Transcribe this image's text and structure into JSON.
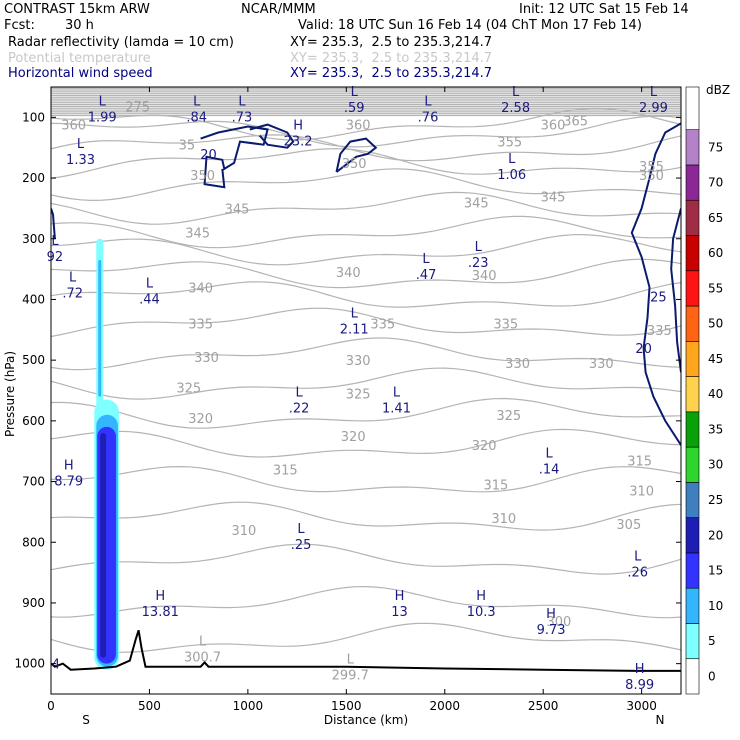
{
  "header": {
    "title": "CONTRAST 15km ARW",
    "center": "NCAR/MMM",
    "init": "Init: 12 UTC Sat 15 Feb 14",
    "fcst_label": "Fcst:",
    "fcst_value": "30 h",
    "valid": "Valid: 18 UTC Sun 16 Feb 14 (04 ChT Mon 17 Feb 14)",
    "fields": [
      {
        "name": "Radar reflectivity (lamda = 10 cm)",
        "xy": "XY= 235.3,  2.5 to 235.3,214.7",
        "color": "#000000"
      },
      {
        "name": "Potential temperature",
        "xy": "XY= 235.3,  2.5 to 235.3,214.7",
        "color": "#c8c8c8"
      },
      {
        "name": "Horizontal wind speed",
        "xy": "XY= 235.3,  2.5 to 235.3,214.7",
        "color": "#000080"
      }
    ]
  },
  "chart_data": {
    "type": "cross-section",
    "xlabel": "Distance (km)",
    "ylabel": "Pressure (hPa)",
    "xlim": [
      0,
      3200
    ],
    "ylim": [
      1050,
      50
    ],
    "x_ticks": [
      0,
      500,
      1000,
      1500,
      2000,
      2500,
      3000
    ],
    "y_ticks": [
      100,
      200,
      300,
      400,
      500,
      600,
      700,
      800,
      900,
      1000
    ],
    "x_end_labels": {
      "left": "S",
      "right": "N"
    },
    "colorbar": {
      "unit": "dBZ",
      "levels": [
        "0",
        "5",
        "10",
        "15",
        "20",
        "25",
        "30",
        "35",
        "40",
        "45",
        "50",
        "55",
        "60",
        "65",
        "70",
        "75"
      ],
      "colors": [
        "#ffffff",
        "#7fffff",
        "#33b5ff",
        "#3333ff",
        "#1e1eb4",
        "#3f7fbf",
        "#2fd42f",
        "#0aa00a",
        "#ffd24d",
        "#ffa51e",
        "#ff6414",
        "#ff1414",
        "#c80000",
        "#a02d46",
        "#8c2896",
        "#b482c8"
      ]
    },
    "theta_labels": [
      {
        "text": "275",
        "x": 440,
        "p": 82
      },
      {
        "text": "360",
        "x": 115,
        "p": 112
      },
      {
        "text": "360",
        "x": 1560,
        "p": 112
      },
      {
        "text": "365",
        "x": 2665,
        "p": 105
      },
      {
        "text": "360",
        "x": 2550,
        "p": 112
      },
      {
        "text": "35",
        "x": 690,
        "p": 145
      },
      {
        "text": "355",
        "x": 2330,
        "p": 140
      },
      {
        "text": "350",
        "x": 770,
        "p": 195
      },
      {
        "text": "350",
        "x": 1540,
        "p": 175
      },
      {
        "text": "345",
        "x": 945,
        "p": 250
      },
      {
        "text": "345",
        "x": 2160,
        "p": 240
      },
      {
        "text": "345",
        "x": 2550,
        "p": 230
      },
      {
        "text": "345",
        "x": 745,
        "p": 290
      },
      {
        "text": "340",
        "x": 1510,
        "p": 355
      },
      {
        "text": "340",
        "x": 760,
        "p": 380
      },
      {
        "text": "340",
        "x": 2200,
        "p": 360
      },
      {
        "text": "335",
        "x": 760,
        "p": 440
      },
      {
        "text": "335",
        "x": 1685,
        "p": 440
      },
      {
        "text": "335",
        "x": 2310,
        "p": 440
      },
      {
        "text": "330",
        "x": 790,
        "p": 495
      },
      {
        "text": "330",
        "x": 1560,
        "p": 500
      },
      {
        "text": "330",
        "x": 2370,
        "p": 505
      },
      {
        "text": "330",
        "x": 2795,
        "p": 505
      },
      {
        "text": "325",
        "x": 700,
        "p": 545
      },
      {
        "text": "325",
        "x": 1560,
        "p": 555
      },
      {
        "text": "325",
        "x": 2325,
        "p": 590
      },
      {
        "text": "320",
        "x": 760,
        "p": 595
      },
      {
        "text": "320",
        "x": 1535,
        "p": 625
      },
      {
        "text": "320",
        "x": 2200,
        "p": 640
      },
      {
        "text": "315",
        "x": 1190,
        "p": 680
      },
      {
        "text": "315",
        "x": 2260,
        "p": 705
      },
      {
        "text": "315",
        "x": 2990,
        "p": 665
      },
      {
        "text": "310",
        "x": 980,
        "p": 780
      },
      {
        "text": "310",
        "x": 2300,
        "p": 760
      },
      {
        "text": "310",
        "x": 3000,
        "p": 715
      },
      {
        "text": "305",
        "x": 2935,
        "p": 770
      },
      {
        "text": "300",
        "x": 2580,
        "p": 930
      },
      {
        "text": "355",
        "x": 3050,
        "p": 180
      },
      {
        "text": "350",
        "x": 3050,
        "p": 195
      },
      {
        "text": "335",
        "x": 3090,
        "p": 450
      }
    ],
    "wind_extrema": [
      {
        "type": "L",
        "value": "1.99",
        "x": 260,
        "p": 90
      },
      {
        "type": "L",
        "value": ".84",
        "x": 740,
        "p": 90
      },
      {
        "type": "L",
        "value": ".73",
        "x": 970,
        "p": 90
      },
      {
        "type": "L",
        "value": ".59",
        "x": 1540,
        "p": 75
      },
      {
        "type": "L",
        "value": ".76",
        "x": 1915,
        "p": 90
      },
      {
        "type": "L",
        "value": "2.58",
        "x": 2360,
        "p": 75
      },
      {
        "type": "L",
        "value": "2.99",
        "x": 3060,
        "p": 75
      },
      {
        "type": "L",
        "value": "1.33",
        "x": 150,
        "p": 160
      },
      {
        "type": "H",
        "value": "23.2",
        "x": 1255,
        "p": 130
      },
      {
        "type": "L",
        "value": "1.06",
        "x": 2340,
        "p": 185
      },
      {
        "type": "L",
        "value": "92",
        "x": 20,
        "p": 320
      },
      {
        "type": "L",
        "value": ".23",
        "x": 2170,
        "p": 330
      },
      {
        "type": "L",
        "value": ".47",
        "x": 1905,
        "p": 350
      },
      {
        "type": "L",
        "value": ".72",
        "x": 110,
        "p": 380
      },
      {
        "type": "L",
        "value": ".44",
        "x": 500,
        "p": 390
      },
      {
        "type": "L",
        "value": "2.11",
        "x": 1540,
        "p": 440
      },
      {
        "type": "L",
        "value": ".22",
        "x": 1260,
        "p": 570
      },
      {
        "type": "L",
        "value": "1.41",
        "x": 1755,
        "p": 570
      },
      {
        "type": "L",
        "value": ".14",
        "x": 2530,
        "p": 670
      },
      {
        "type": "H",
        "value": "8.79",
        "x": 90,
        "p": 690
      },
      {
        "type": "L",
        "value": ".25",
        "x": 1270,
        "p": 795
      },
      {
        "type": "L",
        "value": ".26",
        "x": 2980,
        "p": 840
      },
      {
        "type": "H",
        "value": "13.81",
        "x": 555,
        "p": 905
      },
      {
        "type": "H",
        "value": "13",
        "x": 1770,
        "p": 905
      },
      {
        "type": "H",
        "value": "10.3",
        "x": 2185,
        "p": 905
      },
      {
        "type": "H",
        "value": "9.73",
        "x": 2540,
        "p": 935
      },
      {
        "type": "H",
        "value": "8.99",
        "x": 2990,
        "p": 1025
      }
    ],
    "theta_extrema": [
      {
        "type": "L",
        "value": "300.7",
        "x": 770,
        "p": 980
      },
      {
        "type": "L",
        "value": "299.7",
        "x": 1520,
        "p": 1010
      }
    ],
    "wind_contour_labels": [
      {
        "text": "20",
        "x": 800,
        "p": 160
      },
      {
        "text": "25",
        "x": 3085,
        "p": 395
      },
      {
        "text": "20",
        "x": 3010,
        "p": 480
      }
    ],
    "misc_labels": [
      {
        "text": "4",
        "x": 25,
        "p": 1000
      }
    ],
    "reflectivity_columns": [
      {
        "x": [
          230,
          265
        ],
        "p": [
          300,
          990
        ],
        "dbz": 5
      },
      {
        "x": [
          240,
          255
        ],
        "p": [
          335,
          560
        ],
        "dbz": 10
      },
      {
        "x": [
          220,
          345
        ],
        "p": [
          565,
          1010
        ],
        "dbz": 5
      },
      {
        "x": [
          230,
          340
        ],
        "p": [
          590,
          1005
        ],
        "dbz": 10
      },
      {
        "x": [
          235,
          330
        ],
        "p": [
          610,
          1000
        ],
        "dbz": 15
      },
      {
        "x": [
          250,
          280
        ],
        "p": [
          620,
          990
        ],
        "dbz": 20
      }
    ],
    "terrain": [
      [
        0,
        1000
      ],
      [
        20,
        1005
      ],
      [
        60,
        1000
      ],
      [
        100,
        1010
      ],
      [
        220,
        1008
      ],
      [
        330,
        1005
      ],
      [
        400,
        995
      ],
      [
        430,
        960
      ],
      [
        445,
        945
      ],
      [
        460,
        975
      ],
      [
        480,
        1005
      ],
      [
        600,
        1005
      ],
      [
        760,
        1005
      ],
      [
        780,
        998
      ],
      [
        800,
        1005
      ],
      [
        1000,
        1005
      ],
      [
        1500,
        1005
      ],
      [
        2000,
        1008
      ],
      [
        2500,
        1010
      ],
      [
        3000,
        1012
      ],
      [
        3200,
        1012
      ]
    ]
  }
}
